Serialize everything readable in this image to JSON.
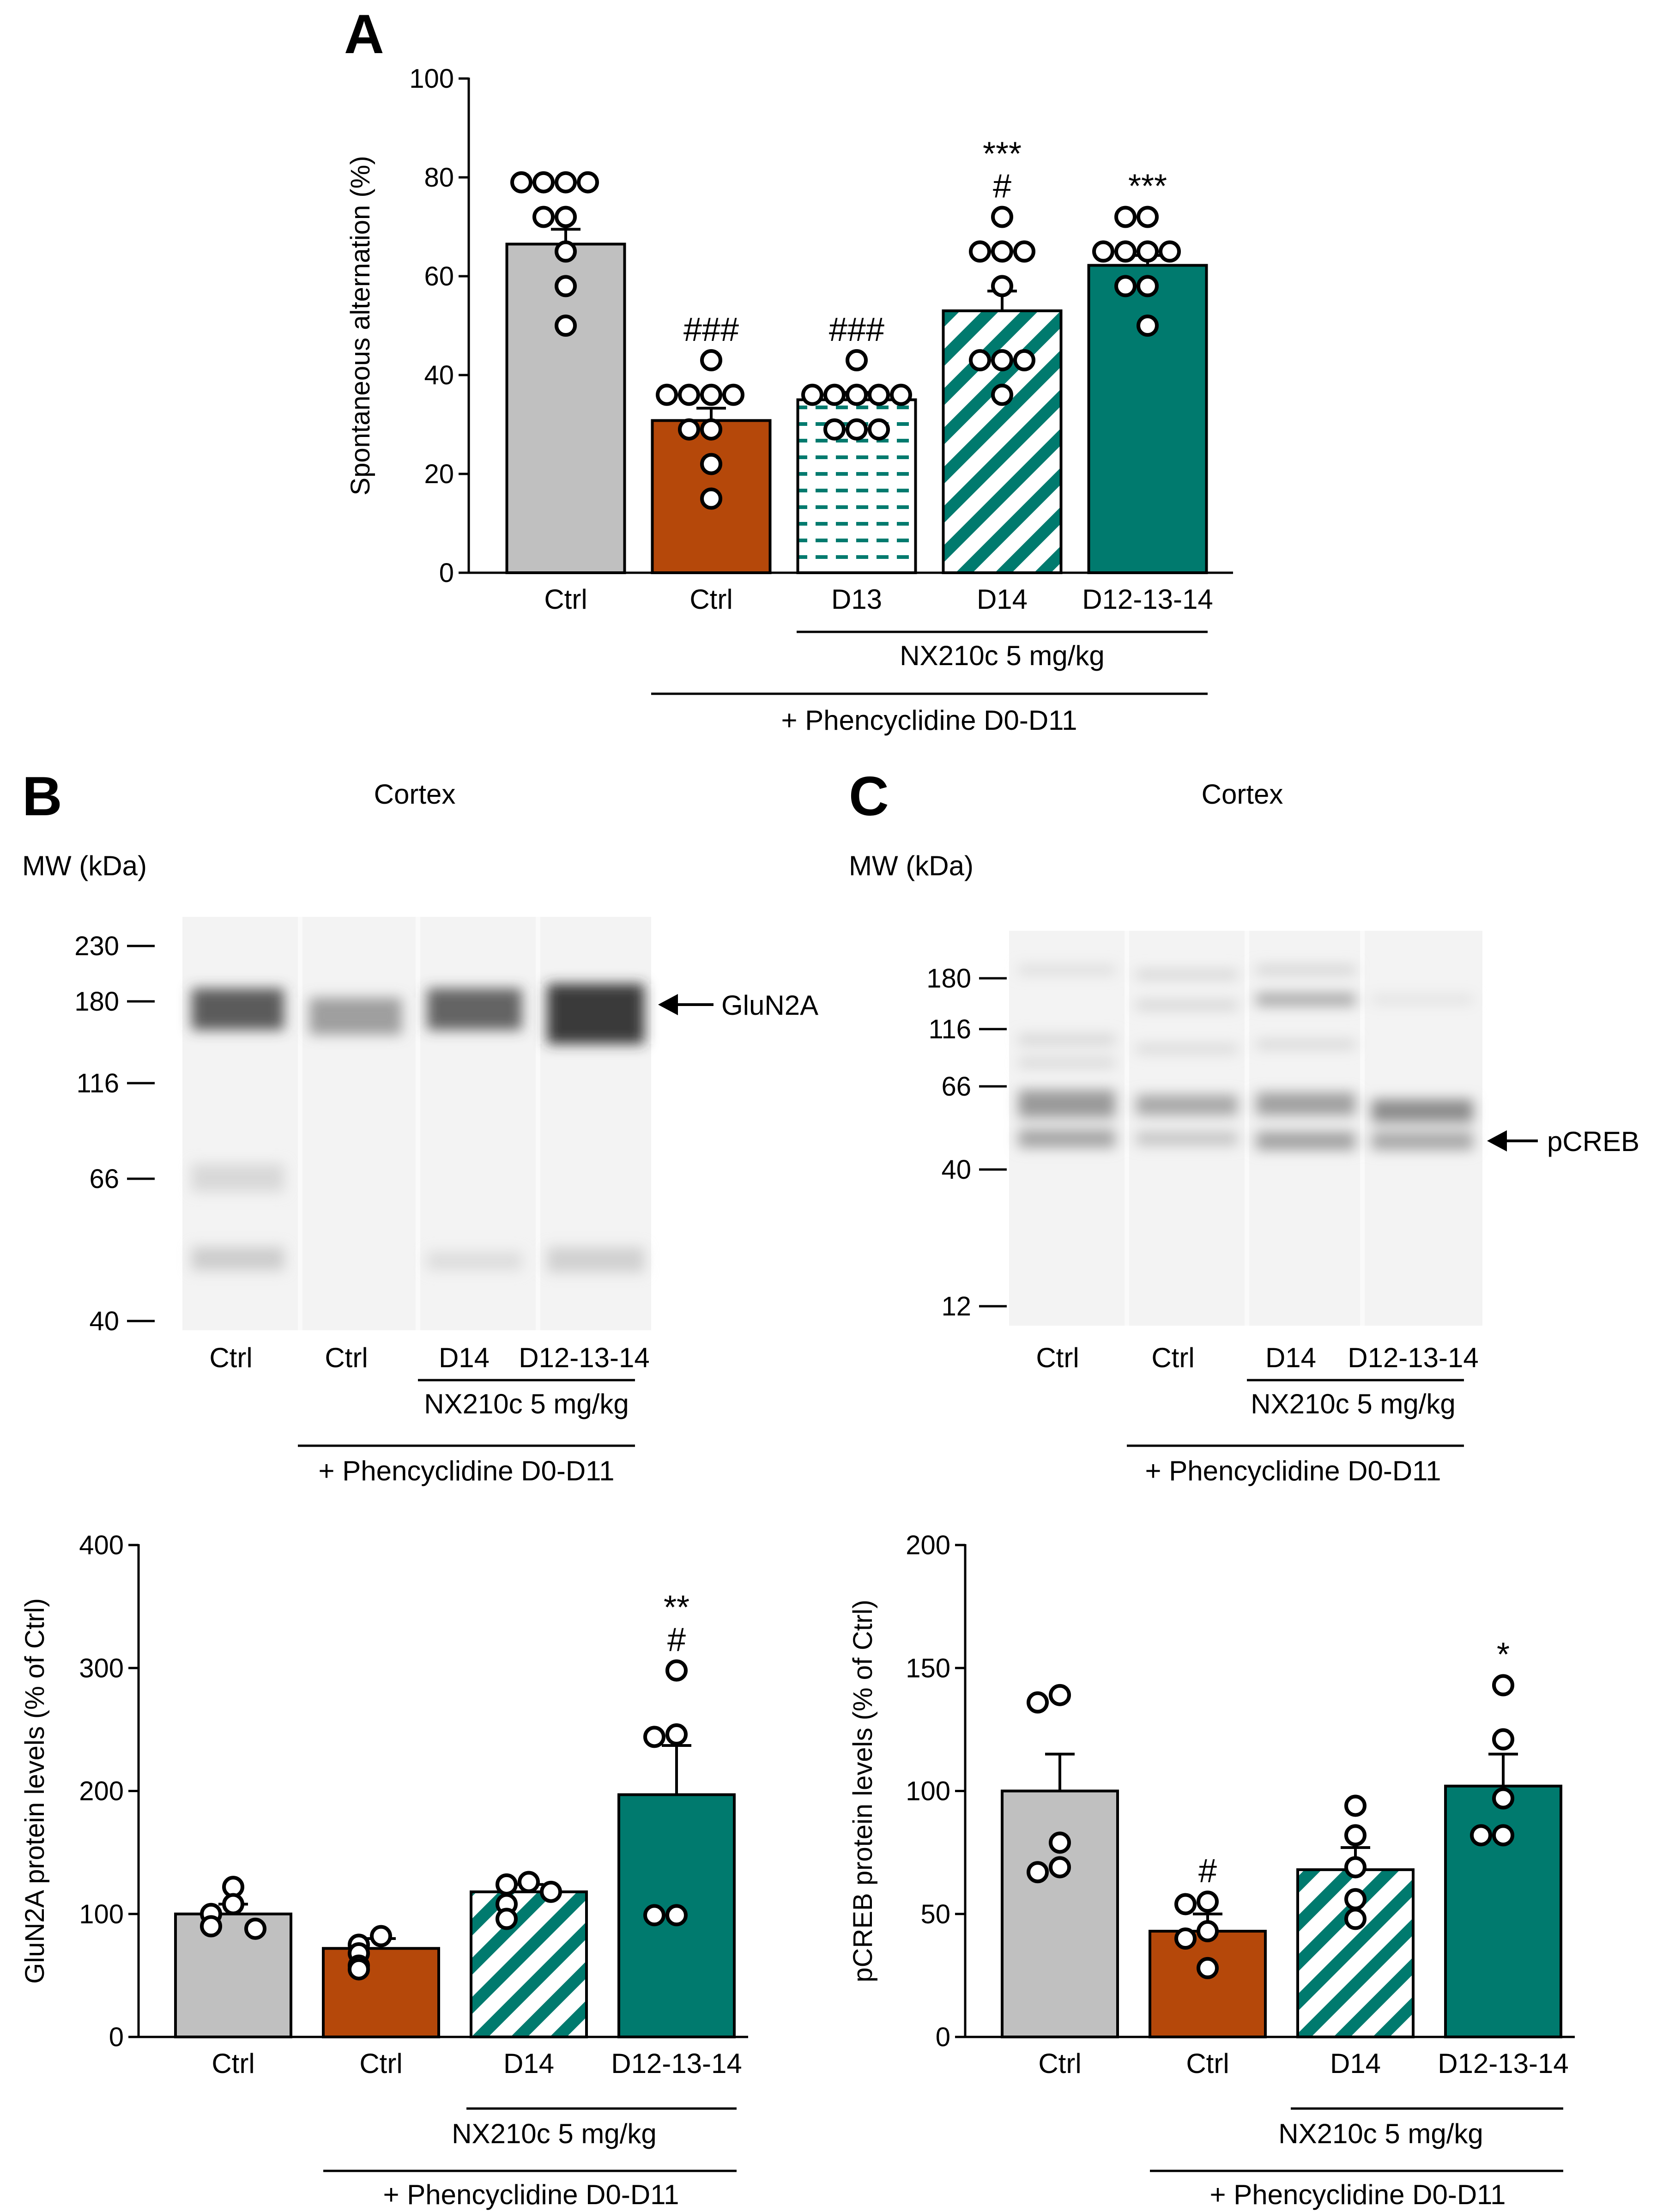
{
  "panels": {
    "A": {
      "letter": "A",
      "bracket_inner": "NX210c 5 mg/kg",
      "bracket_outer": "+ Phencyclidine D0-D11"
    },
    "B": {
      "letter": "B",
      "tissue": "Cortex",
      "mw_label": "MW (kDa)",
      "mw_markers": [
        "230",
        "180",
        "116",
        "66",
        "40"
      ],
      "band_label": "GluN2A",
      "lanes": [
        "Ctrl",
        "Ctrl",
        "D14",
        "D12-13-14"
      ],
      "bracket_inner": "NX210c 5 mg/kg",
      "bracket_outer": "+ Phencyclidine D0-D11"
    },
    "C": {
      "letter": "C",
      "tissue": "Cortex",
      "mw_label": "MW (kDa)",
      "mw_markers": [
        "180",
        "116",
        "66",
        "40",
        "12"
      ],
      "band_label": "pCREB",
      "lanes": [
        "Ctrl",
        "Ctrl",
        "D14",
        "D12-13-14"
      ],
      "bracket_inner": "NX210c 5 mg/kg",
      "bracket_outer": "+ Phencyclidine D0-D11"
    }
  },
  "colors": {
    "ctrl_gray": "#c0c0c0",
    "pcp_orange": "#b5480a",
    "teal": "#007a6e",
    "axis": "#000000"
  },
  "chart_data": [
    {
      "id": "A",
      "type": "bar",
      "ylabel": "Spontaneous alternation (%)",
      "ylim": [
        0,
        100
      ],
      "yticks": [
        0,
        20,
        40,
        60,
        80,
        100
      ],
      "categories": [
        "Ctrl",
        "Ctrl",
        "D13",
        "D14",
        "D12-13-14"
      ],
      "values": [
        66.5,
        30.8,
        35,
        53,
        62.2
      ],
      "sem": [
        3,
        2.5,
        1.5,
        4,
        2
      ],
      "fills": [
        "gray",
        "orange",
        "teal-dash",
        "teal-stripe",
        "teal"
      ],
      "annotations": [
        [
          "",
          ""
        ],
        [
          "###",
          ""
        ],
        [
          "###",
          ""
        ],
        [
          "***",
          "#"
        ],
        [
          "***",
          ""
        ]
      ],
      "points": [
        [
          79,
          79,
          79,
          79,
          72,
          72,
          65,
          58,
          50
        ],
        [
          43,
          36,
          36,
          36,
          36,
          29,
          29,
          22,
          15
        ],
        [
          43,
          36,
          36,
          36,
          36,
          36,
          29,
          29,
          29
        ],
        [
          72,
          65,
          65,
          65,
          58,
          43,
          43,
          43,
          36
        ],
        [
          72,
          72,
          65,
          65,
          65,
          65,
          58,
          58,
          50
        ]
      ]
    },
    {
      "id": "B",
      "type": "bar",
      "ylabel": "GluN2A protein levels (% of Ctrl)",
      "ylim": [
        0,
        400
      ],
      "yticks": [
        0,
        100,
        200,
        300,
        400
      ],
      "categories": [
        "Ctrl",
        "Ctrl",
        "D14",
        "D12-13-14"
      ],
      "values": [
        100,
        72,
        118,
        197
      ],
      "sem": [
        8,
        8,
        6,
        40
      ],
      "fills": [
        "gray",
        "orange",
        "teal-stripe",
        "teal"
      ],
      "annotations": [
        [
          "",
          ""
        ],
        [
          "",
          ""
        ],
        [
          "",
          ""
        ],
        [
          "**",
          "#"
        ]
      ],
      "points": [
        [
          122,
          108,
          100,
          90,
          88
        ],
        [
          82,
          75,
          68,
          58,
          55
        ],
        [
          126,
          124,
          118,
          108,
          96
        ],
        [
          298,
          246,
          244,
          99,
          99
        ]
      ]
    },
    {
      "id": "C",
      "type": "bar",
      "ylabel": "pCREB protein levels (% of Ctrl)",
      "ylim": [
        0,
        200
      ],
      "yticks": [
        0,
        50,
        100,
        150,
        200
      ],
      "categories": [
        "Ctrl",
        "Ctrl",
        "D14",
        "D12-13-14"
      ],
      "values": [
        100,
        43,
        68,
        102
      ],
      "sem": [
        15,
        7,
        9,
        13
      ],
      "fills": [
        "gray",
        "orange",
        "teal-stripe",
        "teal"
      ],
      "annotations": [
        [
          "",
          ""
        ],
        [
          "#",
          ""
        ],
        [
          "",
          ""
        ],
        [
          "*",
          ""
        ]
      ],
      "points": [
        [
          139,
          136,
          79,
          69,
          67
        ],
        [
          55,
          54,
          43,
          40,
          28
        ],
        [
          94,
          82,
          69,
          56,
          48
        ],
        [
          143,
          121,
          97,
          82,
          82
        ]
      ]
    }
  ]
}
